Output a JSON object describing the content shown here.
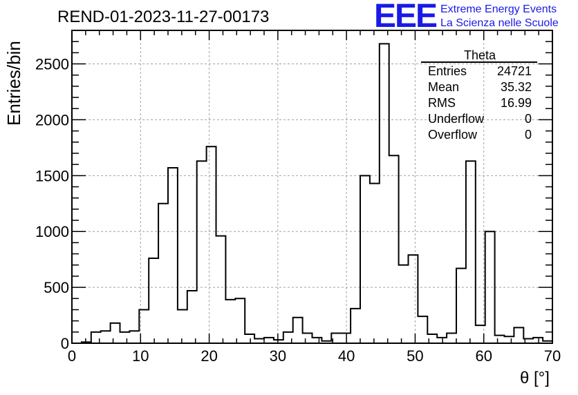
{
  "header": {
    "run_title": "REND-01-2023-11-27-00173",
    "logo_mark": "EEE",
    "logo_line1": "Extreme Energy Events",
    "logo_line2": "La Scienza nelle Scuole"
  },
  "stats_box": {
    "title": "Theta",
    "rows": [
      {
        "key": "Entries",
        "value": "24721"
      },
      {
        "key": "Mean",
        "value": "35.32"
      },
      {
        "key": "RMS",
        "value": "16.99"
      },
      {
        "key": "Underflow",
        "value": "0"
      },
      {
        "key": "Overflow",
        "value": "0"
      }
    ]
  },
  "colors": {
    "line": "#000000",
    "grid": "#a0a0a0",
    "logo": "#1a1ae6"
  },
  "chart_data": {
    "type": "bar",
    "style": "step-histogram",
    "xlabel": "θ [°]",
    "ylabel": "Entries/bin",
    "xlim": [
      0,
      70
    ],
    "ylim": [
      0,
      2800
    ],
    "xticks": [
      0,
      10,
      20,
      30,
      40,
      50,
      60,
      70
    ],
    "yticks": [
      0,
      500,
      1000,
      1500,
      2000,
      2500
    ],
    "grid": true,
    "bin_width": 1.4,
    "bin_start": 0,
    "values": [
      0,
      10,
      100,
      110,
      180,
      100,
      110,
      300,
      760,
      1250,
      1570,
      300,
      470,
      1630,
      1760,
      960,
      390,
      400,
      80,
      40,
      50,
      30,
      100,
      230,
      90,
      50,
      20,
      90,
      90,
      310,
      1500,
      1430,
      2680,
      1680,
      700,
      790,
      240,
      80,
      50,
      90,
      670,
      1630,
      160,
      1000,
      70,
      60,
      140,
      40,
      50,
      20
    ]
  }
}
